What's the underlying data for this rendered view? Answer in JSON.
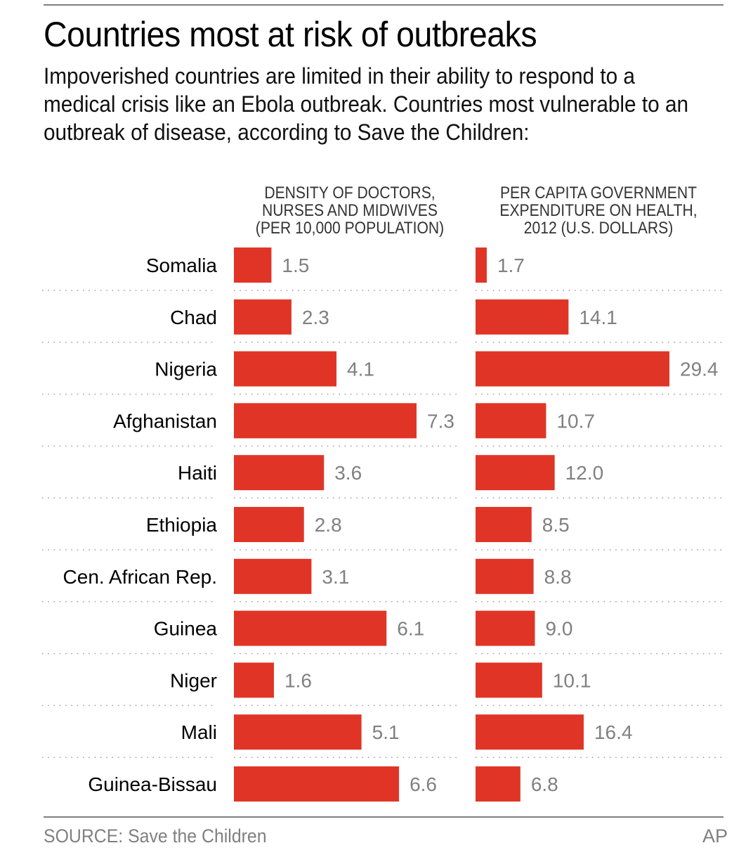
{
  "header": {
    "title": "Countries most at risk of outbreaks",
    "subtitle": "Impoverished countries are limited in their ability to respond to a medical crisis like an Ebola outbreak. Countries most vulnerable to an outbreak of disease, according to Save the Children:"
  },
  "colors": {
    "bar": "#e03526",
    "value_text": "#808080",
    "rule": "#7f7f7f",
    "dotted_separator": "#9a9a9a"
  },
  "chart_data": {
    "type": "bar",
    "orientation": "horizontal",
    "title": "Countries most at risk of outbreaks",
    "categories": [
      "Somalia",
      "Chad",
      "Nigeria",
      "Afghanistan",
      "Haiti",
      "Ethiopia",
      "Cen. African Rep.",
      "Guinea",
      "Niger",
      "Mali",
      "Guinea-Bissau"
    ],
    "series": [
      {
        "name": "DENSITY OF DOCTORS,\nNURSES AND MIDWIVES\n(PER 10,000 POPULATION)",
        "values": [
          1.5,
          2.3,
          4.1,
          7.3,
          3.6,
          2.8,
          3.1,
          6.1,
          1.6,
          5.1,
          6.6
        ],
        "labels": [
          "1.5",
          "2.3",
          "4.1",
          "7.3",
          "3.6",
          "2.8",
          "3.1",
          "6.1",
          "1.6",
          "5.1",
          "6.6"
        ],
        "xlim": [
          0,
          7.3
        ]
      },
      {
        "name": "PER CAPITA GOVERNMENT\nEXPENDITURE ON HEALTH,\n2012 (U.S. DOLLARS)",
        "values": [
          1.7,
          14.1,
          29.4,
          10.7,
          12.0,
          8.5,
          8.8,
          9.0,
          10.1,
          16.4,
          6.8
        ],
        "labels": [
          "1.7",
          "14.1",
          "29.4",
          "10.7",
          "12.0",
          "8.5",
          "8.8",
          "9.0",
          "10.1",
          "16.4",
          "6.8"
        ],
        "xlim": [
          0,
          29.4
        ]
      }
    ],
    "xlabel": "",
    "ylabel": "",
    "grid": false,
    "legend": "none"
  },
  "footer": {
    "source": "SOURCE: Save the Children",
    "credit": "AP"
  }
}
